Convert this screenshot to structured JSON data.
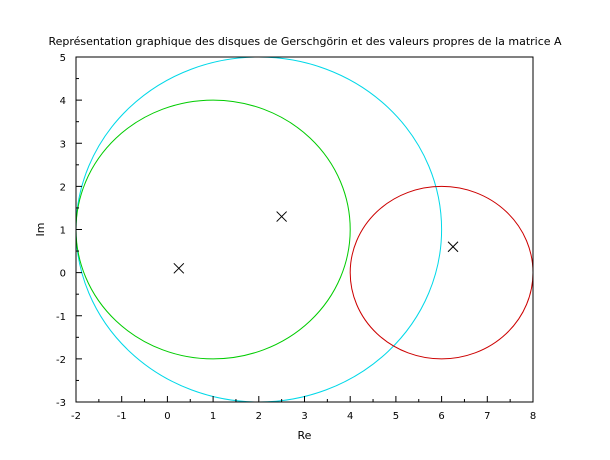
{
  "chart_data": {
    "type": "scatter",
    "title": "Représentation graphique des disques de Gerschgörin et des valeurs propres de la matrice A",
    "xlabel": "Re",
    "ylabel": "Im",
    "xlim": [
      -2,
      8
    ],
    "ylim": [
      -3,
      5
    ],
    "xticks": [
      "-2",
      "-1",
      "0",
      "1",
      "2",
      "3",
      "4",
      "5",
      "6",
      "7",
      "8"
    ],
    "yticks": [
      "-3",
      "-2",
      "-1",
      "0",
      "1",
      "2",
      "3",
      "4",
      "5"
    ],
    "grid": false,
    "disks": [
      {
        "center": [
          2,
          1
        ],
        "radius": 4,
        "color": "#00d8e8"
      },
      {
        "center": [
          1,
          1
        ],
        "radius": 3,
        "color": "#00cc00"
      },
      {
        "center": [
          6,
          0
        ],
        "radius": 2,
        "color": "#cc0000"
      }
    ],
    "eigenvalues": [
      {
        "x": 0.25,
        "y": 0.1
      },
      {
        "x": 2.5,
        "y": 1.3
      },
      {
        "x": 6.25,
        "y": 0.6
      }
    ],
    "marker": "x",
    "marker_color": "#000000"
  }
}
